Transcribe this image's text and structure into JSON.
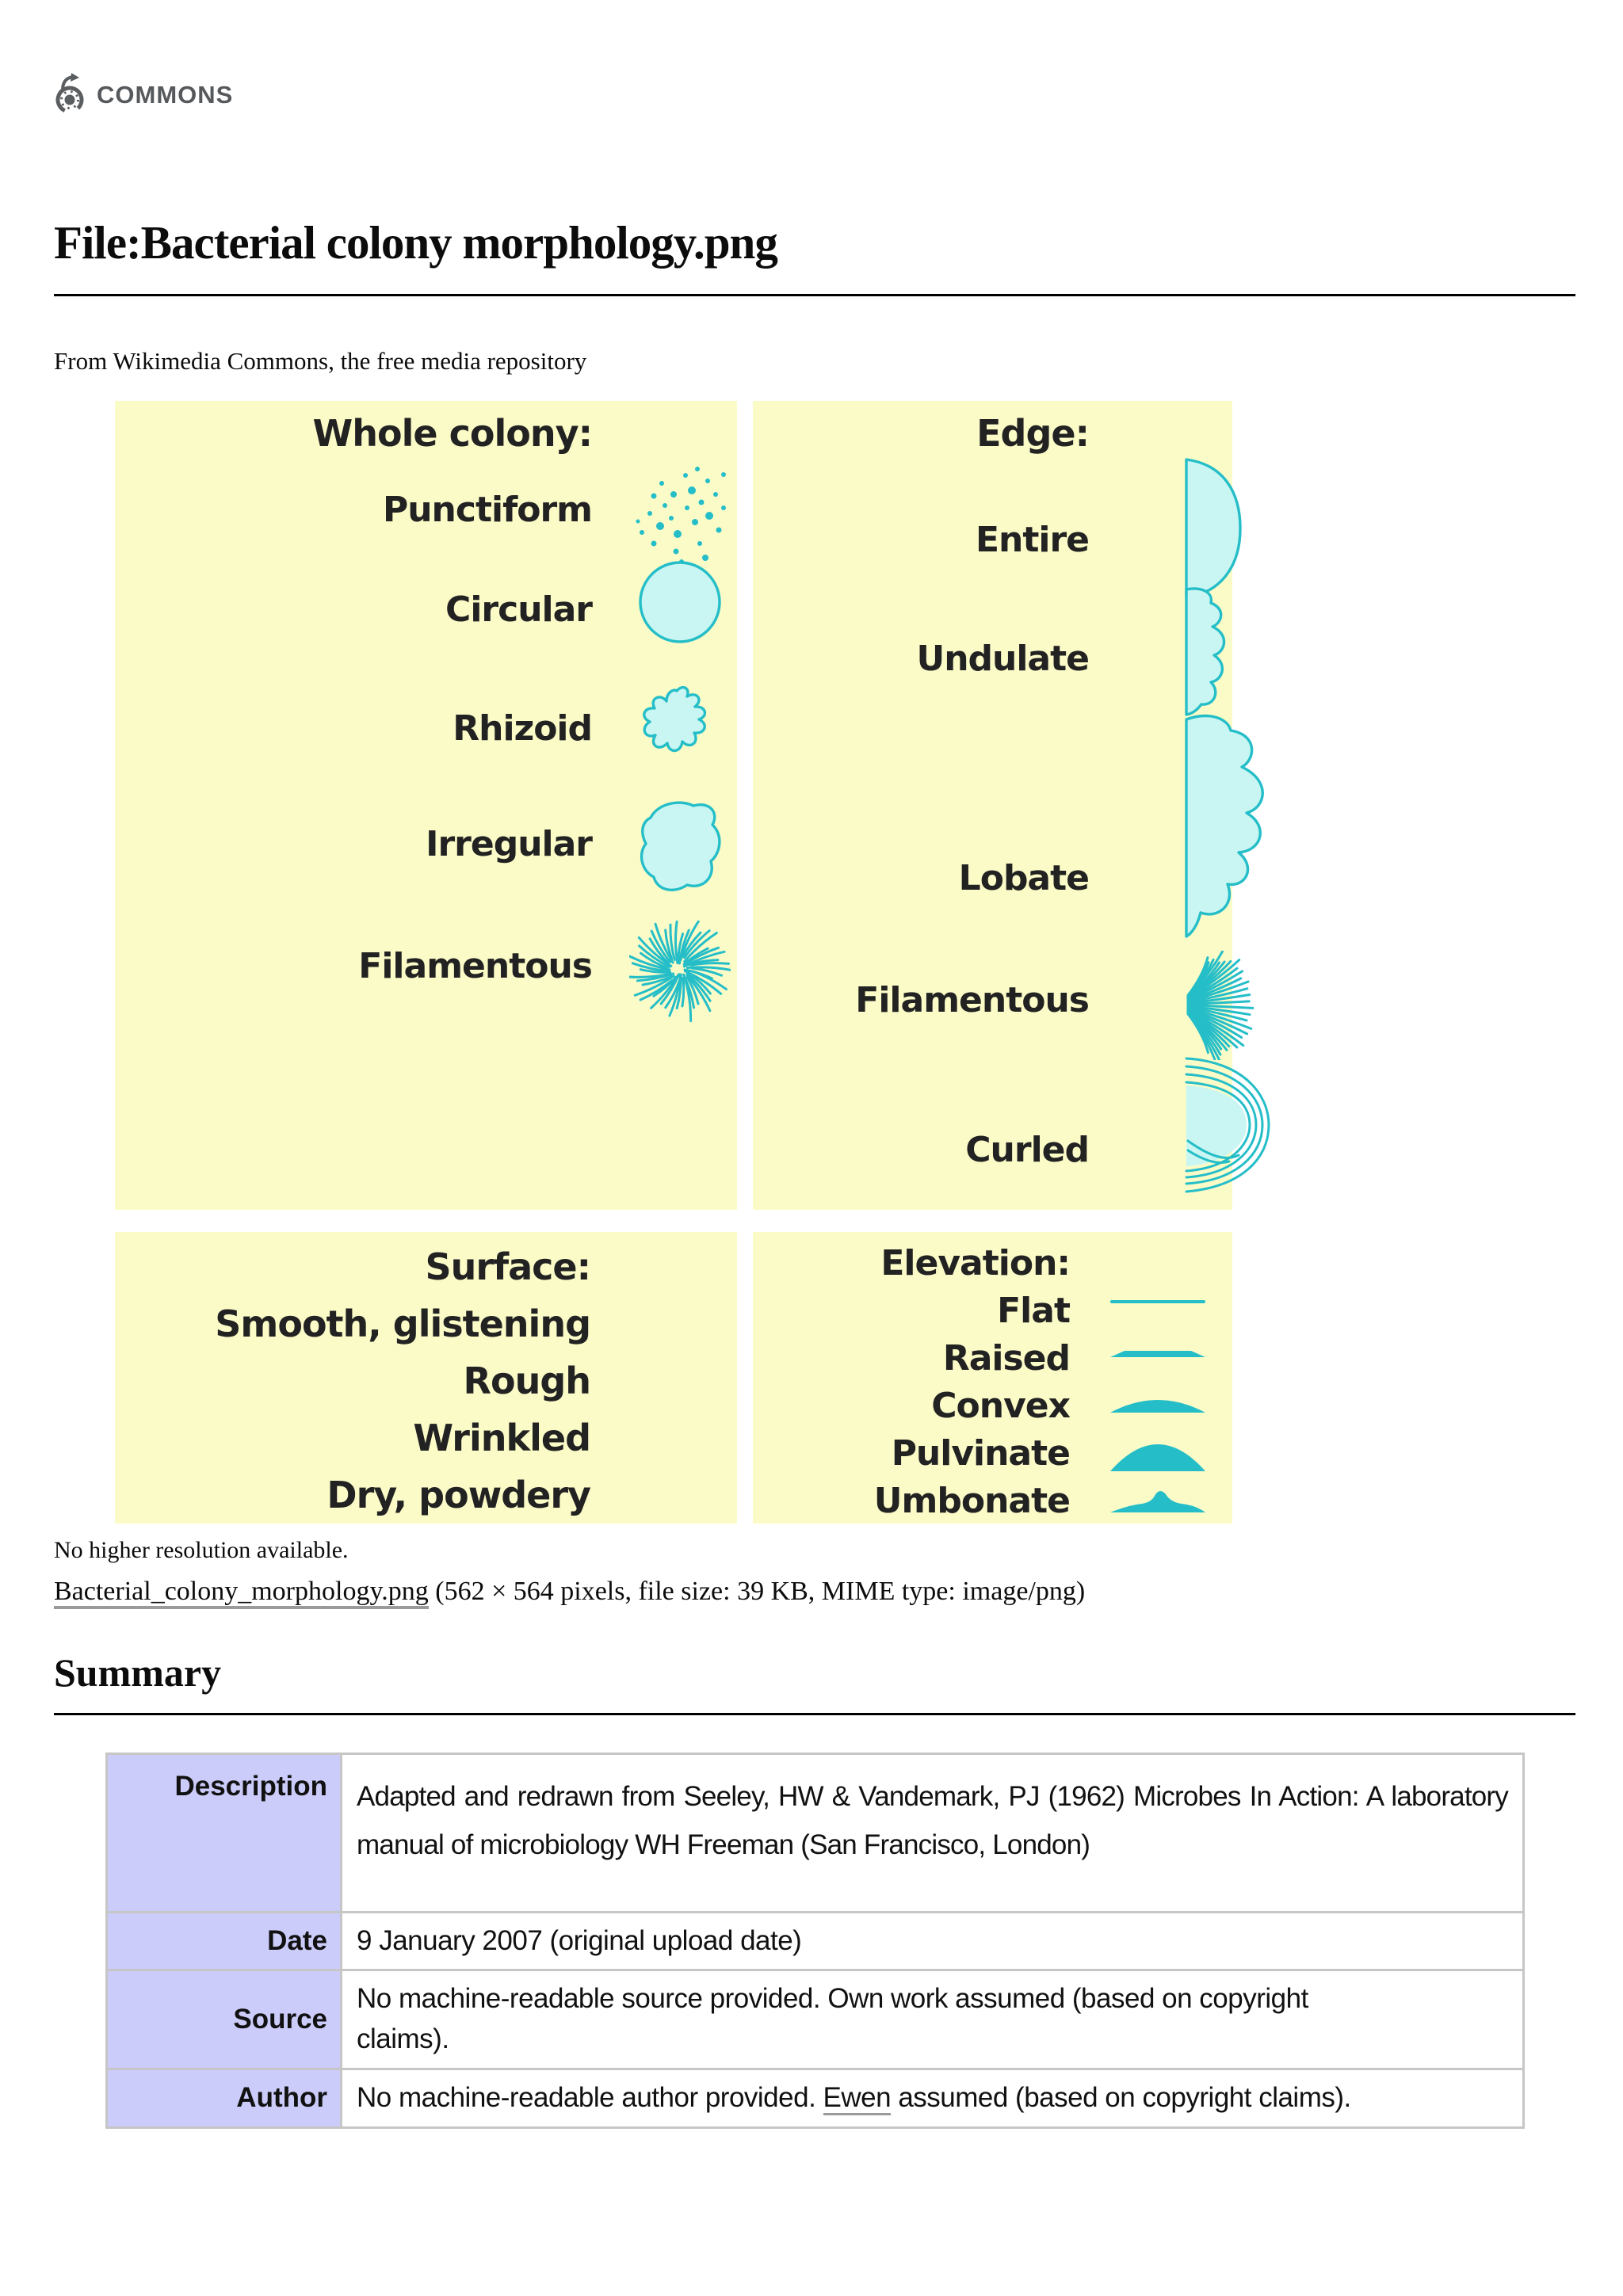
{
  "page": {
    "logo_text": "COMMONS",
    "title": "File:Bacterial colony morphology.png",
    "subtitle": "From Wikimedia Commons, the free media repository",
    "no_higher_res": "No higher resolution available.",
    "file_link": "Bacterial_colony_morphology.png",
    "file_info": " (562 × 564 pixels, file size: 39 KB, MIME type: image/png)",
    "summary_heading": "Summary"
  },
  "figure": {
    "whole_colony": {
      "title": "Whole colony:",
      "items": [
        "Punctiform",
        "Circular",
        "Rhizoid",
        "Irregular",
        "Filamentous"
      ]
    },
    "edge": {
      "title": "Edge:",
      "items": [
        "Entire",
        "Undulate",
        "Lobate",
        "Filamentous",
        "Curled"
      ]
    },
    "surface": {
      "title": "Surface:",
      "items": [
        "Smooth, glistening",
        "Rough",
        "Wrinkled",
        "Dry, powdery"
      ]
    },
    "elevation": {
      "title": "Elevation:",
      "items": [
        "Flat",
        "Raised",
        "Convex",
        "Pulvinate",
        "Umbonate"
      ]
    },
    "colors": {
      "panel_bg": "#fbfbc8",
      "shape_fill": "#c9f6f2",
      "shape_stroke": "#25bec8"
    }
  },
  "table": {
    "label_bg": "#ccccfa",
    "description_label": "Description",
    "description_value": "Adapted and redrawn from Seeley, HW & Vandemark, PJ (1962) Microbes In Action: A laboratory manual of microbiology WH Freeman (San Francisco, London)",
    "date_label": "Date",
    "date_value": "9 January 2007 (original upload date)",
    "source_label": "Source",
    "source_value": "No machine-readable source provided. Own work assumed (based on copyright claims).",
    "author_label": "Author",
    "author_pre": "No machine-readable author provided. ",
    "author_link": "Ewen",
    "author_post": " assumed (based on copyright claims)."
  }
}
